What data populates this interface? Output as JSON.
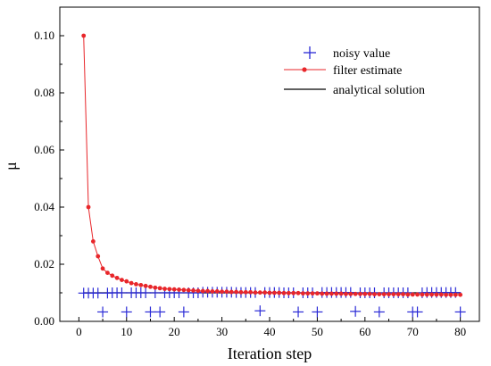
{
  "chart_data": {
    "type": "line",
    "xlabel": "Iteration step",
    "ylabel": "μ",
    "xlim": [
      -4,
      84
    ],
    "ylim": [
      0,
      0.11
    ],
    "xticks": [
      0,
      10,
      20,
      30,
      40,
      50,
      60,
      70,
      80
    ],
    "xtick_labels": [
      "0",
      "10",
      "20",
      "30",
      "40",
      "50",
      "60",
      "70",
      "80"
    ],
    "yticks": [
      0.0,
      0.02,
      0.04,
      0.06,
      0.08,
      0.1
    ],
    "ytick_labels": [
      "0.00",
      "0.02",
      "0.04",
      "0.06",
      "0.08",
      "0.10"
    ],
    "grid": false,
    "legend_position": "top-right",
    "series": [
      {
        "name": "noisy value",
        "style": "plus-marker",
        "color": "#2a2ad6",
        "points": [
          [
            1,
            0.0099
          ],
          [
            2,
            0.0099
          ],
          [
            3,
            0.0099
          ],
          [
            4,
            0.0099
          ],
          [
            5,
            0.0033
          ],
          [
            6,
            0.0099
          ],
          [
            7,
            0.01
          ],
          [
            8,
            0.01
          ],
          [
            9,
            0.01
          ],
          [
            10,
            0.0033
          ],
          [
            11,
            0.01
          ],
          [
            12,
            0.01
          ],
          [
            13,
            0.01
          ],
          [
            14,
            0.01
          ],
          [
            15,
            0.0033
          ],
          [
            16,
            0.01
          ],
          [
            17,
            0.0033
          ],
          [
            18,
            0.01
          ],
          [
            19,
            0.01
          ],
          [
            20,
            0.01
          ],
          [
            21,
            0.01
          ],
          [
            22,
            0.0033
          ],
          [
            23,
            0.01
          ],
          [
            24,
            0.01
          ],
          [
            25,
            0.01
          ],
          [
            26,
            0.0102
          ],
          [
            27,
            0.0102
          ],
          [
            28,
            0.0102
          ],
          [
            29,
            0.0102
          ],
          [
            30,
            0.0102
          ],
          [
            31,
            0.0102
          ],
          [
            32,
            0.0102
          ],
          [
            33,
            0.0101
          ],
          [
            34,
            0.0101
          ],
          [
            35,
            0.0101
          ],
          [
            36,
            0.0101
          ],
          [
            37,
            0.0101
          ],
          [
            38,
            0.0037
          ],
          [
            39,
            0.0101
          ],
          [
            40,
            0.0101
          ],
          [
            41,
            0.0101
          ],
          [
            42,
            0.0101
          ],
          [
            43,
            0.01
          ],
          [
            44,
            0.01
          ],
          [
            45,
            0.01
          ],
          [
            46,
            0.0033
          ],
          [
            47,
            0.01
          ],
          [
            48,
            0.01
          ],
          [
            49,
            0.01
          ],
          [
            50,
            0.0033
          ],
          [
            51,
            0.0101
          ],
          [
            52,
            0.0101
          ],
          [
            53,
            0.0101
          ],
          [
            54,
            0.0101
          ],
          [
            55,
            0.0101
          ],
          [
            56,
            0.0101
          ],
          [
            57,
            0.0101
          ],
          [
            58,
            0.0035
          ],
          [
            59,
            0.01
          ],
          [
            60,
            0.01
          ],
          [
            61,
            0.01
          ],
          [
            62,
            0.01
          ],
          [
            63,
            0.0033
          ],
          [
            64,
            0.01
          ],
          [
            65,
            0.01
          ],
          [
            66,
            0.01
          ],
          [
            67,
            0.01
          ],
          [
            68,
            0.01
          ],
          [
            69,
            0.01
          ],
          [
            70,
            0.0033
          ],
          [
            71,
            0.0033
          ],
          [
            72,
            0.01
          ],
          [
            73,
            0.0101
          ],
          [
            74,
            0.0101
          ],
          [
            75,
            0.0101
          ],
          [
            76,
            0.0101
          ],
          [
            77,
            0.0101
          ],
          [
            78,
            0.0101
          ],
          [
            79,
            0.0101
          ],
          [
            80,
            0.0033
          ]
        ]
      },
      {
        "name": "filter estimate",
        "style": "line-dot",
        "color": "#e8262a",
        "points": [
          [
            1,
            0.1
          ],
          [
            2,
            0.04
          ],
          [
            3,
            0.028
          ],
          [
            4,
            0.0228
          ],
          [
            5,
            0.0185
          ],
          [
            6,
            0.017
          ],
          [
            7,
            0.016
          ],
          [
            8,
            0.0152
          ],
          [
            9,
            0.0145
          ],
          [
            10,
            0.014
          ],
          [
            11,
            0.0134
          ],
          [
            12,
            0.013
          ],
          [
            13,
            0.0127
          ],
          [
            14,
            0.0124
          ],
          [
            15,
            0.0121
          ],
          [
            16,
            0.0118
          ],
          [
            17,
            0.0116
          ],
          [
            18,
            0.0114
          ],
          [
            19,
            0.0113
          ],
          [
            20,
            0.0112
          ],
          [
            21,
            0.0111
          ],
          [
            22,
            0.011
          ],
          [
            23,
            0.0109
          ],
          [
            24,
            0.0108
          ],
          [
            25,
            0.0107
          ],
          [
            26,
            0.0106
          ],
          [
            27,
            0.0106
          ],
          [
            28,
            0.0105
          ],
          [
            29,
            0.0105
          ],
          [
            30,
            0.0104
          ],
          [
            31,
            0.0104
          ],
          [
            32,
            0.0103
          ],
          [
            33,
            0.0103
          ],
          [
            34,
            0.0102
          ],
          [
            35,
            0.0102
          ],
          [
            36,
            0.0102
          ],
          [
            37,
            0.0101
          ],
          [
            38,
            0.0101
          ],
          [
            39,
            0.0101
          ],
          [
            40,
            0.01
          ],
          [
            41,
            0.01
          ],
          [
            42,
            0.01
          ],
          [
            43,
            0.0099
          ],
          [
            44,
            0.0099
          ],
          [
            45,
            0.0099
          ],
          [
            46,
            0.0099
          ],
          [
            47,
            0.0098
          ],
          [
            48,
            0.0098
          ],
          [
            49,
            0.0098
          ],
          [
            50,
            0.0098
          ],
          [
            51,
            0.0097
          ],
          [
            52,
            0.0097
          ],
          [
            53,
            0.0097
          ],
          [
            54,
            0.0097
          ],
          [
            55,
            0.0097
          ],
          [
            56,
            0.0096
          ],
          [
            57,
            0.0096
          ],
          [
            58,
            0.0096
          ],
          [
            59,
            0.0096
          ],
          [
            60,
            0.0096
          ],
          [
            61,
            0.0096
          ],
          [
            62,
            0.0095
          ],
          [
            63,
            0.0095
          ],
          [
            64,
            0.0095
          ],
          [
            65,
            0.0095
          ],
          [
            66,
            0.0095
          ],
          [
            67,
            0.0095
          ],
          [
            68,
            0.0095
          ],
          [
            69,
            0.0094
          ],
          [
            70,
            0.0094
          ],
          [
            71,
            0.0094
          ],
          [
            72,
            0.0094
          ],
          [
            73,
            0.0094
          ],
          [
            74,
            0.0094
          ],
          [
            75,
            0.0094
          ],
          [
            76,
            0.0094
          ],
          [
            77,
            0.0093
          ],
          [
            78,
            0.0093
          ],
          [
            79,
            0.0093
          ],
          [
            80,
            0.0093
          ]
        ]
      },
      {
        "name": "analytical solution",
        "style": "line",
        "color": "#000000",
        "points": [
          [
            1,
            0.01
          ],
          [
            80,
            0.01
          ]
        ]
      }
    ]
  }
}
